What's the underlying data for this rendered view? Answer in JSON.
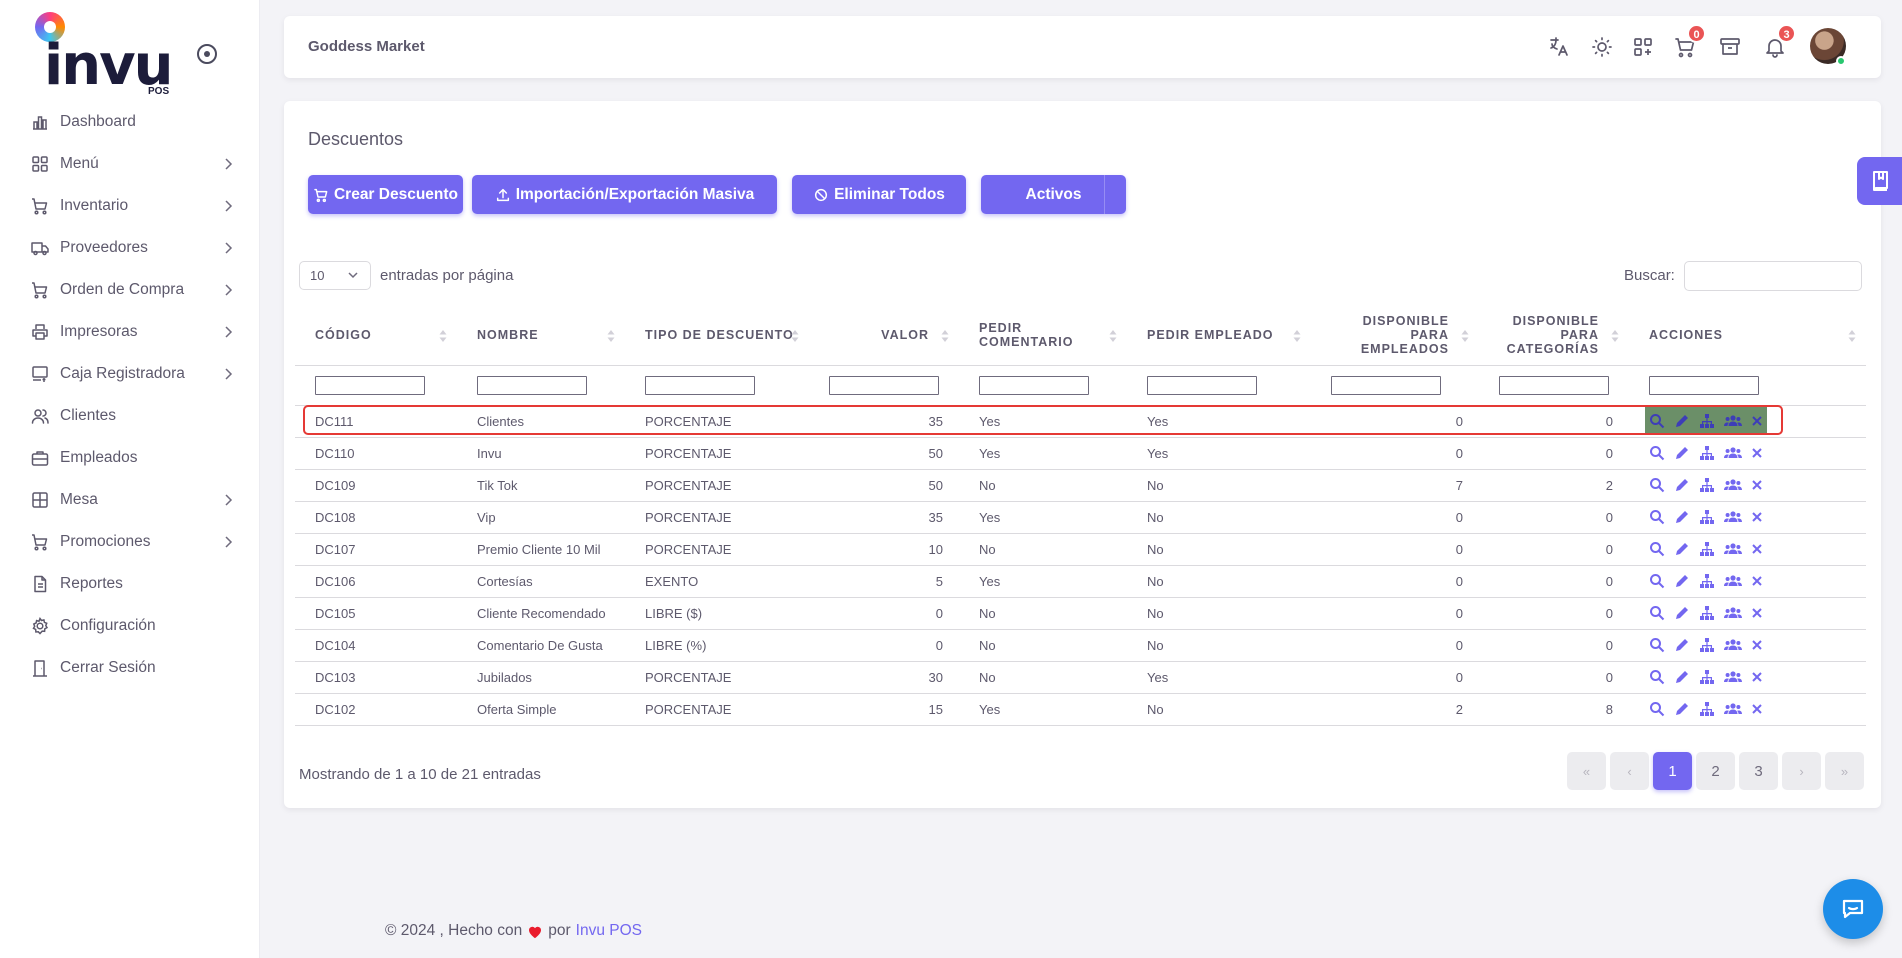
{
  "brand": {
    "logo_text": "invu",
    "logo_sub": "POS"
  },
  "sidebar": {
    "items": [
      {
        "label": "Dashboard",
        "icon": "bar-chart-icon",
        "has_submenu": false
      },
      {
        "label": "Menú",
        "icon": "grid-icon",
        "has_submenu": true
      },
      {
        "label": "Inventario",
        "icon": "cart-icon",
        "has_submenu": true
      },
      {
        "label": "Proveedores",
        "icon": "truck-icon",
        "has_submenu": true
      },
      {
        "label": "Orden de Compra",
        "icon": "shopping-cart-icon",
        "has_submenu": true
      },
      {
        "label": "Impresoras",
        "icon": "printer-icon",
        "has_submenu": true
      },
      {
        "label": "Caja Registradora",
        "icon": "cash-register-icon",
        "has_submenu": true
      },
      {
        "label": "Clientes",
        "icon": "users-icon",
        "has_submenu": false
      },
      {
        "label": "Empleados",
        "icon": "briefcase-icon",
        "has_submenu": false
      },
      {
        "label": "Mesa",
        "icon": "table-icon",
        "has_submenu": true
      },
      {
        "label": "Promociones",
        "icon": "promo-cart-icon",
        "has_submenu": true
      },
      {
        "label": "Reportes",
        "icon": "file-icon",
        "has_submenu": false
      },
      {
        "label": "Configuración",
        "icon": "gear-icon",
        "has_submenu": false
      },
      {
        "label": "Cerrar Sesión",
        "icon": "logout-door-icon",
        "has_submenu": false
      }
    ]
  },
  "navbar": {
    "store_name": "Goddess Market",
    "cart_count": "0",
    "notification_count": "3"
  },
  "page": {
    "title": "Descuentos",
    "buttons": {
      "create": "Crear Descuento",
      "import_export": "Importación/Exportación Masiva",
      "delete_all": "Eliminar Todos",
      "active": "Activos"
    },
    "page_length": "10",
    "page_length_label": "entradas por página",
    "search_label": "Buscar:"
  },
  "table": {
    "columns": [
      "Código",
      "Nombre",
      "Tipo de Descuento",
      "Valor",
      "Pedir Comentario",
      "Pedir Empleado",
      "Disponible para Empleados",
      "Disponible para Categorías",
      "Acciones"
    ],
    "rows": [
      {
        "code": "DC111",
        "name": "Clientes",
        "type": "PORCENTAJE",
        "value": "35",
        "ask_comment": "Yes",
        "ask_employee": "Yes",
        "emp": "0",
        "cat": "0"
      },
      {
        "code": "DC110",
        "name": "Invu",
        "type": "PORCENTAJE",
        "value": "50",
        "ask_comment": "Yes",
        "ask_employee": "Yes",
        "emp": "0",
        "cat": "0"
      },
      {
        "code": "DC109",
        "name": "Tik Tok",
        "type": "PORCENTAJE",
        "value": "50",
        "ask_comment": "No",
        "ask_employee": "No",
        "emp": "7",
        "cat": "2"
      },
      {
        "code": "DC108",
        "name": "Vip",
        "type": "PORCENTAJE",
        "value": "35",
        "ask_comment": "Yes",
        "ask_employee": "No",
        "emp": "0",
        "cat": "0"
      },
      {
        "code": "DC107",
        "name": "Premio Cliente 10 Mil",
        "type": "PORCENTAJE",
        "value": "10",
        "ask_comment": "No",
        "ask_employee": "No",
        "emp": "0",
        "cat": "0"
      },
      {
        "code": "DC106",
        "name": "Cortesías",
        "type": "EXENTO",
        "value": "5",
        "ask_comment": "Yes",
        "ask_employee": "No",
        "emp": "0",
        "cat": "0"
      },
      {
        "code": "DC105",
        "name": "Cliente Recomendado",
        "type": "LIBRE ($)",
        "value": "0",
        "ask_comment": "No",
        "ask_employee": "No",
        "emp": "0",
        "cat": "0"
      },
      {
        "code": "DC104",
        "name": "Comentario De Gusta",
        "type": "LIBRE (%)",
        "value": "0",
        "ask_comment": "No",
        "ask_employee": "No",
        "emp": "0",
        "cat": "0"
      },
      {
        "code": "DC103",
        "name": "Jubilados",
        "type": "PORCENTAJE",
        "value": "30",
        "ask_comment": "No",
        "ask_employee": "Yes",
        "emp": "0",
        "cat": "0"
      },
      {
        "code": "DC102",
        "name": "Oferta Simple",
        "type": "PORCENTAJE",
        "value": "15",
        "ask_comment": "Yes",
        "ask_employee": "No",
        "emp": "2",
        "cat": "8"
      }
    ]
  },
  "pagination": {
    "info": "Mostrando de 1 a 10 de 21 entradas",
    "first": "«",
    "prev": "‹",
    "pages": [
      "1",
      "2",
      "3"
    ],
    "next": "›",
    "last": "»",
    "current": "1"
  },
  "footer": {
    "prefix": "© 2024 , Hecho con",
    "by": "por",
    "link": "Invu POS"
  },
  "colors": {
    "primary": "#7367f0",
    "danger": "#ea5455",
    "success": "#28c76f",
    "highlight_row_actions": "#6b8f68"
  }
}
